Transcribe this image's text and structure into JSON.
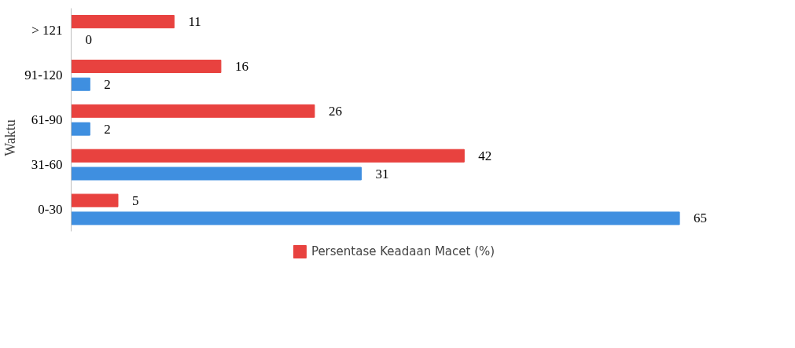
{
  "chart_data": {
    "type": "bar",
    "orientation": "horizontal",
    "ylabel": "Waktu",
    "categories": [
      "> 121",
      "91-120",
      "61-90",
      "31-60",
      "0-30"
    ],
    "series": [
      {
        "name": "Persentase Keadaan Macet (%)",
        "color": "#e8423f",
        "values": [
          11,
          16,
          26,
          42,
          5
        ]
      },
      {
        "color": "#3f8fe0",
        "values": [
          0,
          2,
          2,
          31,
          65
        ]
      }
    ],
    "data_labels": true,
    "legend": "bottom",
    "grid": false
  }
}
